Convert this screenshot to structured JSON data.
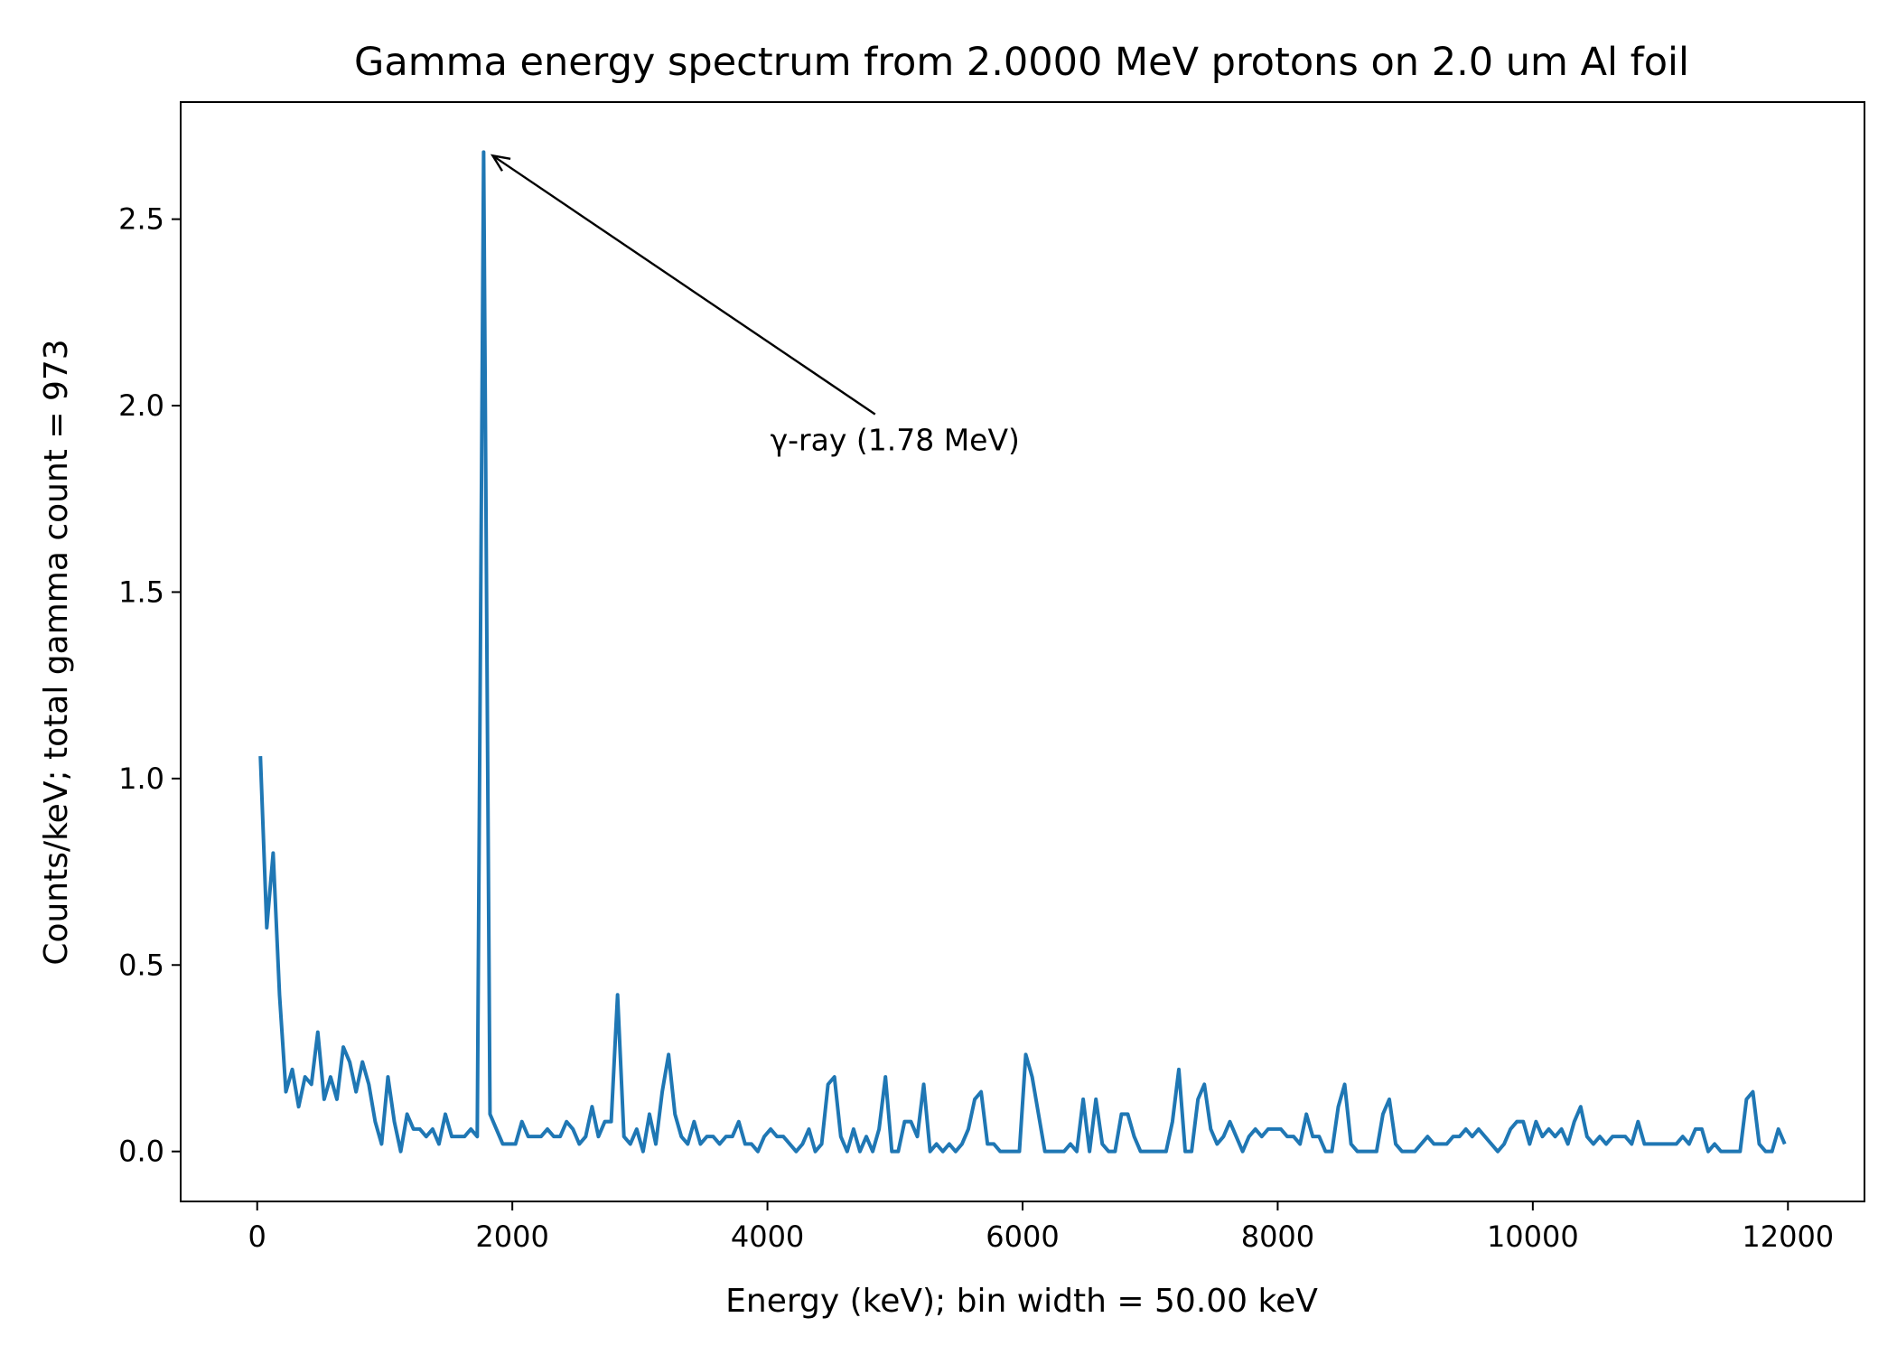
{
  "chart_data": {
    "type": "line",
    "title": "Gamma energy spectrum from 2.0000 MeV protons on 2.0 um Al foil",
    "xlabel": "Energy (keV); bin width = 50.00 keV",
    "ylabel": "Counts/keV; total gamma count = 973",
    "xlim": [
      -600,
      12600
    ],
    "ylim": [
      -0.134,
      2.814
    ],
    "xticks": [
      0,
      2000,
      4000,
      6000,
      8000,
      10000,
      12000
    ],
    "xtick_labels": [
      "0",
      "2000",
      "4000",
      "6000",
      "8000",
      "10000",
      "12000"
    ],
    "yticks": [
      0.0,
      0.5,
      1.0,
      1.5,
      2.0,
      2.5
    ],
    "ytick_labels": [
      "0.0",
      "0.5",
      "1.0",
      "1.5",
      "2.0",
      "2.5"
    ],
    "grid": false,
    "series_color": "#1f77b4",
    "series": [
      {
        "x": [
          25,
          75,
          125,
          175,
          225,
          275,
          325,
          375,
          425,
          475,
          525,
          575,
          625,
          675,
          725,
          775,
          825,
          875,
          925,
          975,
          1025,
          1075,
          1125,
          1175,
          1225,
          1275,
          1325,
          1375,
          1425,
          1475,
          1525,
          1575,
          1625,
          1675,
          1725,
          1775,
          1825,
          1875,
          1925,
          1975,
          2025,
          2075,
          2125,
          2175,
          2225,
          2275,
          2325,
          2375,
          2425,
          2475,
          2525,
          2575,
          2625,
          2675,
          2725,
          2775,
          2825,
          2875,
          2925,
          2975,
          3025,
          3075,
          3125,
          3175,
          3225,
          3275,
          3325,
          3375,
          3425,
          3475,
          3525,
          3575,
          3625,
          3675,
          3725,
          3775,
          3825,
          3875,
          3925,
          3975,
          4025,
          4075,
          4125,
          4175,
          4225,
          4275,
          4325,
          4375,
          4425,
          4475,
          4525,
          4575,
          4625,
          4675,
          4725,
          4775,
          4825,
          4875,
          4925,
          4975,
          5025,
          5075,
          5125,
          5175,
          5225,
          5275,
          5325,
          5375,
          5425,
          5475,
          5525,
          5575,
          5625,
          5675,
          5725,
          5775,
          5825,
          5875,
          5925,
          5975,
          6025,
          6075,
          6125,
          6175,
          6225,
          6275,
          6325,
          6375,
          6425,
          6475,
          6525,
          6575,
          6625,
          6675,
          6725,
          6775,
          6825,
          6875,
          6925,
          6975,
          7025,
          7075,
          7125,
          7175,
          7225,
          7275,
          7325,
          7375,
          7425,
          7475,
          7525,
          7575,
          7625,
          7675,
          7725,
          7775,
          7825,
          7875,
          7925,
          7975,
          8025,
          8075,
          8125,
          8175,
          8225,
          8275,
          8325,
          8375,
          8425,
          8475,
          8525,
          8575,
          8625,
          8675,
          8725,
          8775,
          8825,
          8875,
          8925,
          8975,
          9025,
          9075,
          9125,
          9175,
          9225,
          9275,
          9325,
          9375,
          9425,
          9475,
          9525,
          9575,
          9625,
          9675,
          9725,
          9775,
          9825,
          9875,
          9925,
          9975,
          10025,
          10075,
          10125,
          10175,
          10225,
          10275,
          10325,
          10375,
          10425,
          10475,
          10525,
          10575,
          10625,
          10675,
          10725,
          10775,
          10825,
          10875,
          10925,
          10975,
          11025,
          11075,
          11125,
          11175,
          11225,
          11275,
          11325,
          11375,
          11425,
          11475,
          11525,
          11575,
          11625,
          11675,
          11725,
          11775,
          11825,
          11875,
          11925,
          11975
        ],
        "y": [
          1.06,
          0.6,
          0.8,
          0.42,
          0.16,
          0.22,
          0.12,
          0.2,
          0.18,
          0.32,
          0.14,
          0.2,
          0.14,
          0.28,
          0.24,
          0.16,
          0.24,
          0.18,
          0.08,
          0.02,
          0.2,
          0.08,
          0.0,
          0.1,
          0.06,
          0.06,
          0.04,
          0.06,
          0.02,
          0.1,
          0.04,
          0.04,
          0.04,
          0.06,
          0.04,
          2.68,
          0.1,
          0.06,
          0.02,
          0.02,
          0.02,
          0.08,
          0.04,
          0.04,
          0.04,
          0.06,
          0.04,
          0.04,
          0.08,
          0.06,
          0.02,
          0.04,
          0.12,
          0.04,
          0.08,
          0.08,
          0.42,
          0.04,
          0.02,
          0.06,
          0.0,
          0.1,
          0.02,
          0.16,
          0.26,
          0.1,
          0.04,
          0.02,
          0.08,
          0.02,
          0.04,
          0.04,
          0.02,
          0.04,
          0.04,
          0.08,
          0.02,
          0.02,
          0.0,
          0.04,
          0.06,
          0.04,
          0.04,
          0.02,
          0.0,
          0.02,
          0.06,
          0.0,
          0.02,
          0.18,
          0.2,
          0.04,
          0.0,
          0.06,
          0.0,
          0.04,
          0.0,
          0.06,
          0.2,
          0.0,
          0.0,
          0.08,
          0.08,
          0.04,
          0.18,
          0.0,
          0.02,
          0.0,
          0.02,
          0.0,
          0.02,
          0.06,
          0.14,
          0.16,
          0.02,
          0.02,
          0.0,
          0.0,
          0.0,
          0.0,
          0.26,
          0.2,
          0.1,
          0.0,
          0.0,
          0.0,
          0.0,
          0.02,
          0.0,
          0.14,
          0.0,
          0.14,
          0.02,
          0.0,
          0.0,
          0.1,
          0.1,
          0.04,
          0.0,
          0.0,
          0.0,
          0.0,
          0.0,
          0.08,
          0.22,
          0.0,
          0.0,
          0.14,
          0.18,
          0.06,
          0.02,
          0.04,
          0.08,
          0.04,
          0.0,
          0.04,
          0.06,
          0.04,
          0.06,
          0.06,
          0.06,
          0.04,
          0.04,
          0.02,
          0.1,
          0.04,
          0.04,
          0.0,
          0.0,
          0.12,
          0.18,
          0.02,
          0.0,
          0.0,
          0.0,
          0.0,
          0.1,
          0.14,
          0.02,
          0.0,
          0.0,
          0.0,
          0.02,
          0.04,
          0.02,
          0.02,
          0.02,
          0.04,
          0.04,
          0.06,
          0.04,
          0.06,
          0.04,
          0.02,
          0.0,
          0.02,
          0.06,
          0.08,
          0.08,
          0.02,
          0.08,
          0.04,
          0.06,
          0.04,
          0.06,
          0.02,
          0.08,
          0.12,
          0.04,
          0.02,
          0.04,
          0.02,
          0.04,
          0.04,
          0.04,
          0.02,
          0.08,
          0.02,
          0.02,
          0.02,
          0.02,
          0.02,
          0.02,
          0.04,
          0.02,
          0.06,
          0.06,
          0.0,
          0.02,
          0.0,
          0.0,
          0.0,
          0.0,
          0.14,
          0.16,
          0.02,
          0.0,
          0.0,
          0.06,
          0.02
        ]
      }
    ],
    "annotations": [
      {
        "text": "γ-ray (1.78 MeV)",
        "x": 1775,
        "y": 2.68,
        "text_x": 5000,
        "text_y": 1.88
      }
    ]
  }
}
